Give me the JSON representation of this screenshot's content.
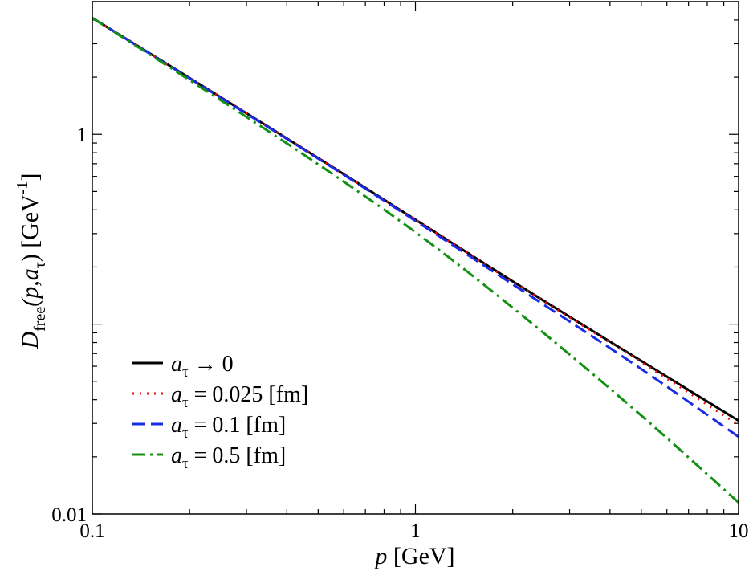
{
  "chart_data": {
    "type": "line",
    "xscale": "log",
    "yscale": "log",
    "xlim": [
      0.1,
      10
    ],
    "ylim": [
      0.01,
      5
    ],
    "xticks": [
      0.1,
      1,
      10
    ],
    "xtick_labels": [
      "0.1",
      "1",
      "10"
    ],
    "yticks": [
      0.01,
      1
    ],
    "ytick_labels": [
      "0.01",
      "1"
    ],
    "xlabel": {
      "var": "p",
      "unit": " [GeV]"
    },
    "ylabel": {
      "main": "D",
      "sub": "free",
      "args_open": "(p,a",
      "tau": "τ",
      "args_close": ")",
      "unit_open": " [GeV",
      "unit_exp": "-1",
      "unit_close": "]"
    },
    "legend_position": "bottom-left",
    "grid": false,
    "series": [
      {
        "name": "aτ → 0",
        "name_parts": {
          "var": "a",
          "sub": "τ",
          "rest": " → 0"
        },
        "color": "#000000",
        "dash": "solid",
        "x": [
          0.1,
          0.2,
          0.5,
          1,
          2,
          5,
          10
        ],
        "y": [
          4.1,
          1.98,
          0.75,
          0.355,
          0.168,
          0.064,
          0.031
        ]
      },
      {
        "name": "aτ = 0.025 [fm]",
        "name_parts": {
          "var": "a",
          "sub": "τ",
          "rest": " = 0.025 [fm]"
        },
        "color": "#ee1111",
        "dash": "dotted",
        "x": [
          0.1,
          0.2,
          0.5,
          1,
          2,
          5,
          10
        ],
        "y": [
          4.1,
          1.98,
          0.75,
          0.355,
          0.167,
          0.063,
          0.0295
        ]
      },
      {
        "name": "aτ = 0.1 [fm]",
        "name_parts": {
          "var": "a",
          "sub": "τ",
          "rest": " = 0.1 [fm]"
        },
        "color": "#1a2be8",
        "dash": "dashed",
        "x": [
          0.1,
          0.2,
          0.5,
          1,
          2,
          5,
          10
        ],
        "y": [
          4.1,
          1.97,
          0.745,
          0.35,
          0.162,
          0.058,
          0.0255
        ]
      },
      {
        "name": "aτ = 0.5 [fm]",
        "name_parts": {
          "var": "a",
          "sub": "τ",
          "rest": " = 0.5 [fm]"
        },
        "color": "#139113",
        "dash": "dashdot",
        "x": [
          0.1,
          0.2,
          0.5,
          1,
          2,
          5,
          10
        ],
        "y": [
          4.1,
          1.93,
          0.695,
          0.305,
          0.122,
          0.033,
          0.0115
        ]
      }
    ]
  }
}
